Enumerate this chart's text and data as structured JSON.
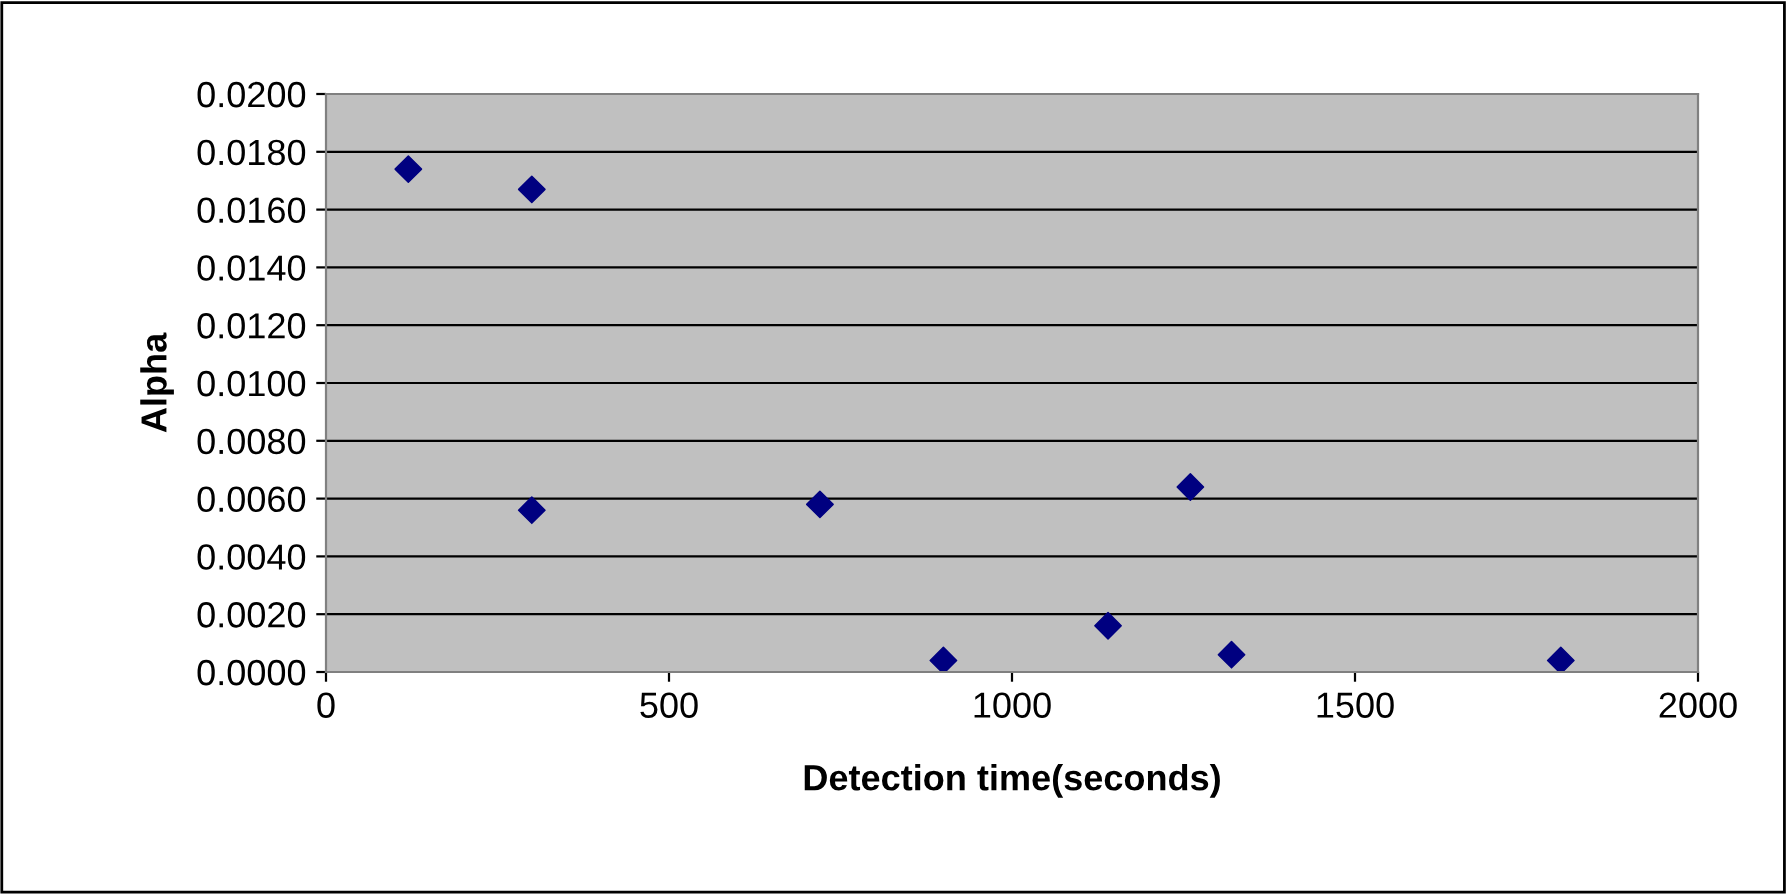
{
  "chart_data": {
    "type": "scatter",
    "xlabel": "Detection time(seconds)",
    "ylabel": "Alpha",
    "x": [
      120,
      300,
      300,
      720,
      900,
      1140,
      1260,
      1320,
      1800
    ],
    "series": [
      {
        "color": "#000080",
        "values": [
          0.0174,
          0.0167,
          0.0056,
          0.0058,
          0.0004,
          0.0016,
          0.0064,
          0.0006,
          0.0004
        ]
      }
    ],
    "marker": "diamond",
    "grid": "y",
    "legend": false,
    "xlim": [
      0,
      2000
    ],
    "xticks": [
      0,
      500,
      1000,
      1500,
      2000
    ],
    "ylim": [
      0,
      0.02
    ],
    "yticks": [
      {
        "value": 0,
        "label": "0.0000"
      },
      {
        "value": 0.002,
        "label": "0.0020"
      },
      {
        "value": 0.004,
        "label": "0.0040"
      },
      {
        "value": 0.006,
        "label": "0.0060"
      },
      {
        "value": 0.008,
        "label": "0.0080"
      },
      {
        "value": 0.01,
        "label": "0.0100"
      },
      {
        "value": 0.012,
        "label": "0.0120"
      },
      {
        "value": 0.014,
        "label": "0.0140"
      },
      {
        "value": 0.016,
        "label": "0.0160"
      },
      {
        "value": 0.018,
        "label": "0.0180"
      },
      {
        "value": 0.02,
        "label": "0.0200"
      }
    ]
  }
}
